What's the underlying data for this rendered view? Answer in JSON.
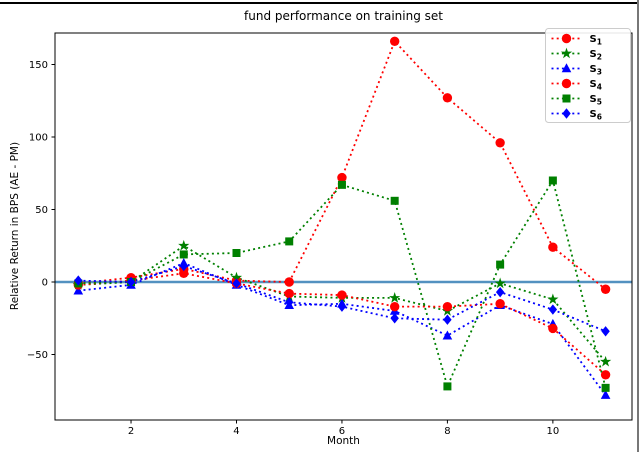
{
  "window": {
    "top_border_color": "#000000",
    "right_border_color": "#777777"
  },
  "chart_data": {
    "type": "line",
    "title": "fund performance on training set",
    "xlabel": "Month",
    "ylabel": "Relative Return in BPS (AE - PM)",
    "x": [
      1,
      2,
      3,
      4,
      5,
      6,
      7,
      8,
      9,
      10,
      11
    ],
    "xlim": [
      0.5,
      11.5
    ],
    "ylim": [
      -95,
      172
    ],
    "xticks": [
      2,
      4,
      6,
      8,
      10
    ],
    "yticks": [
      -50,
      0,
      50,
      100,
      150
    ],
    "grid": false,
    "line_style": "dotted",
    "baseline": {
      "y": 0,
      "color": "#4186ba"
    },
    "legend_position": "upper right",
    "series": [
      {
        "label": "S1",
        "base": "S",
        "sub": "1",
        "color": "#ff0000",
        "marker": "circle",
        "values": [
          -1,
          3,
          9,
          1,
          0,
          72,
          166,
          127,
          96,
          24,
          -5
        ]
      },
      {
        "label": "S2",
        "base": "S",
        "sub": "2",
        "color": "#008000",
        "marker": "star",
        "values": [
          -2,
          0,
          25,
          3,
          -10,
          -11,
          -11,
          -20,
          -1,
          -12,
          -55
        ]
      },
      {
        "label": "S3",
        "base": "S",
        "sub": "3",
        "color": "#0000ff",
        "marker": "triangle-up",
        "values": [
          -6,
          -2,
          13,
          -2,
          -16,
          -15,
          -20,
          -37,
          -16,
          -29,
          -78
        ]
      },
      {
        "label": "S4",
        "base": "S",
        "sub": "4",
        "color": "#ff0000",
        "marker": "circle",
        "values": [
          -2,
          1,
          6,
          -1,
          -8,
          -9,
          -17,
          -17,
          -15,
          -32,
          -64
        ]
      },
      {
        "label": "S5",
        "base": "S",
        "sub": "5",
        "color": "#008000",
        "marker": "square",
        "values": [
          -1,
          0,
          19,
          20,
          28,
          67,
          56,
          -72,
          12,
          70,
          -73
        ]
      },
      {
        "label": "S6",
        "base": "S",
        "sub": "6",
        "color": "#0000ff",
        "marker": "diamond",
        "values": [
          1,
          0,
          11,
          -1,
          -14,
          -17,
          -25,
          -26,
          -7,
          -19,
          -34
        ]
      }
    ]
  }
}
